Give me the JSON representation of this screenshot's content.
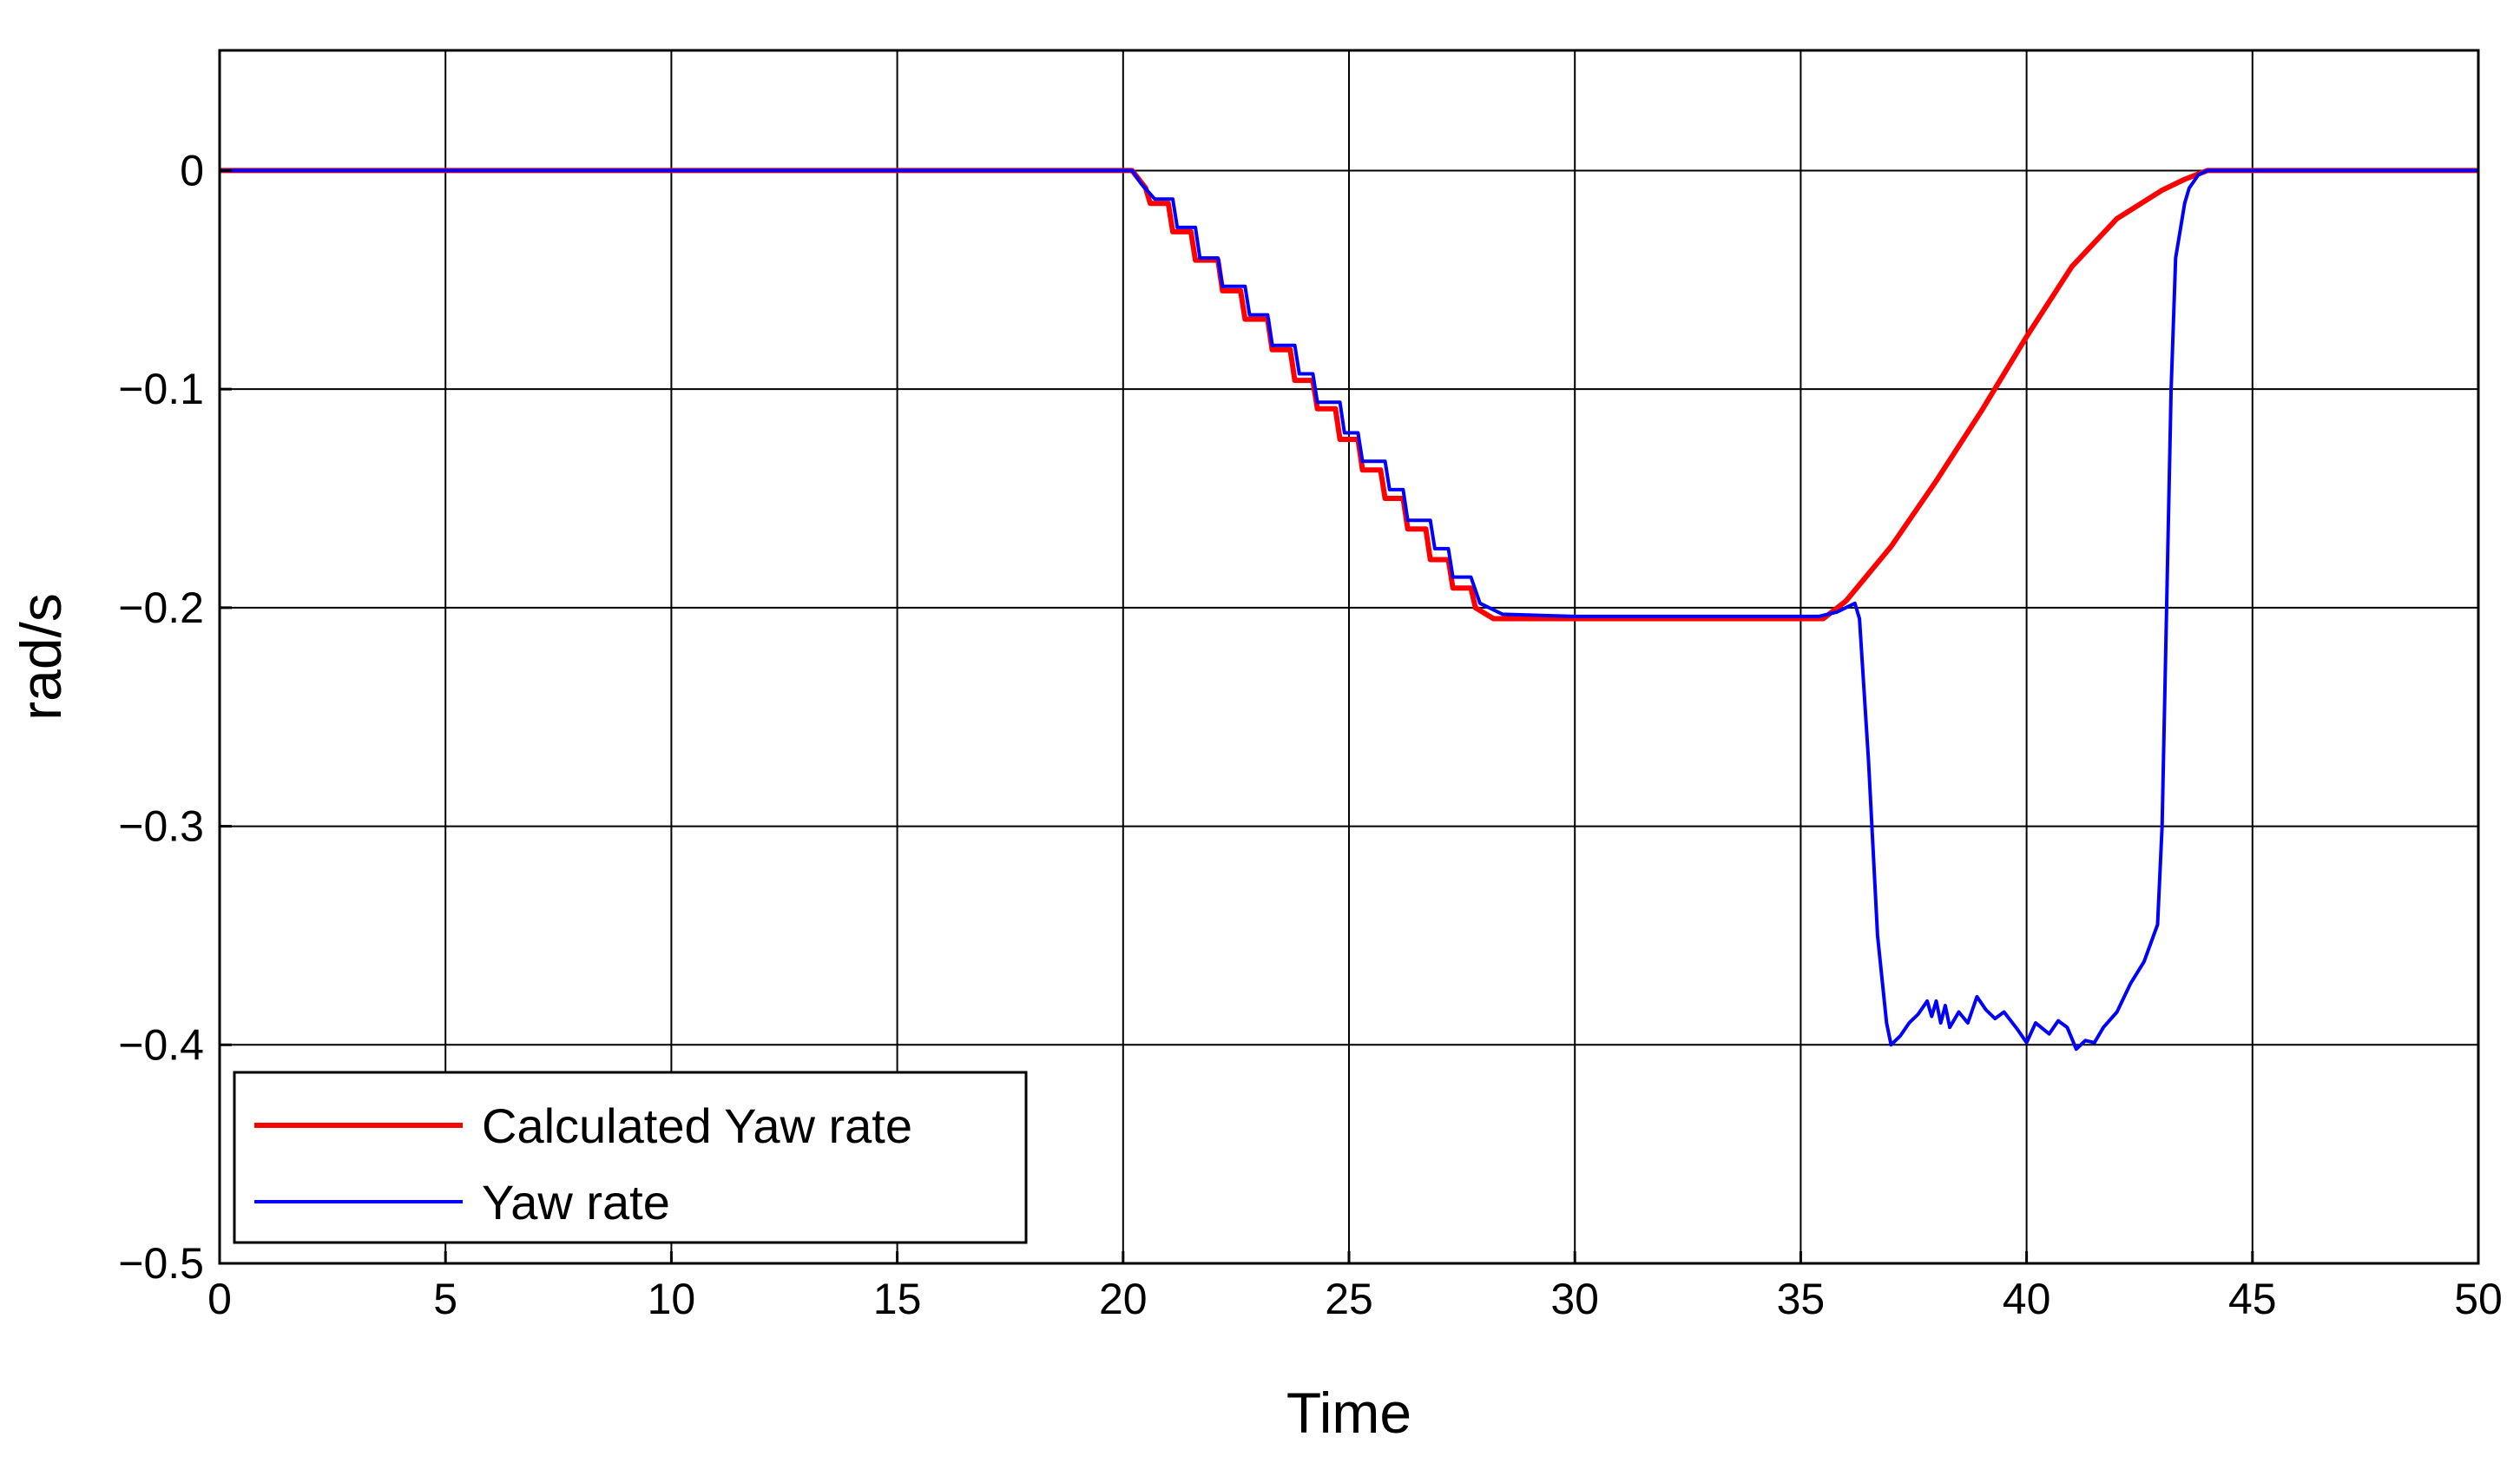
{
  "chart_data": {
    "type": "line",
    "title": "",
    "xlabel": "Time",
    "ylabel": "rad/s",
    "xlim": [
      0,
      50
    ],
    "ylim": [
      -0.5,
      0.055
    ],
    "xticks": [
      0,
      5,
      10,
      15,
      20,
      25,
      30,
      35,
      40,
      45,
      50
    ],
    "xtick_labels": [
      "0",
      "5",
      "10",
      "15",
      "20",
      "25",
      "30",
      "35",
      "40",
      "45",
      "50"
    ],
    "yticks": [
      0,
      -0.1,
      -0.2,
      -0.3,
      -0.4,
      -0.5
    ],
    "ytick_labels": [
      "0",
      "−0.1",
      "−0.2",
      "−0.3",
      "−0.4",
      "−0.5"
    ],
    "grid": true,
    "legend_position": "bottom-left",
    "series": [
      {
        "name": "Calculated Yaw rate",
        "color": "#ff0000",
        "x": [
          0,
          20.2,
          20.5,
          20.6,
          21.0,
          21.1,
          21.5,
          21.6,
          22.1,
          22.2,
          22.6,
          22.7,
          23.2,
          23.3,
          23.7,
          23.8,
          24.2,
          24.3,
          24.7,
          24.8,
          25.2,
          25.3,
          25.7,
          25.8,
          26.2,
          26.3,
          26.7,
          26.8,
          27.2,
          27.3,
          27.7,
          27.8,
          28.2,
          29.0,
          30.0,
          32.0,
          34.0,
          35.5,
          36.0,
          37.0,
          38.0,
          39.0,
          40.0,
          41.0,
          42.0,
          43.0,
          43.5,
          44.0,
          50.0
        ],
        "y": [
          0,
          0,
          -0.008,
          -0.015,
          -0.015,
          -0.028,
          -0.028,
          -0.041,
          -0.041,
          -0.055,
          -0.055,
          -0.068,
          -0.068,
          -0.082,
          -0.082,
          -0.096,
          -0.096,
          -0.109,
          -0.109,
          -0.123,
          -0.123,
          -0.137,
          -0.137,
          -0.15,
          -0.15,
          -0.164,
          -0.164,
          -0.178,
          -0.178,
          -0.191,
          -0.191,
          -0.2,
          -0.205,
          -0.205,
          -0.205,
          -0.205,
          -0.205,
          -0.205,
          -0.197,
          -0.172,
          -0.142,
          -0.11,
          -0.076,
          -0.044,
          -0.022,
          -0.009,
          -0.004,
          0,
          0
        ]
      },
      {
        "name": "Yaw rate",
        "color": "#0000ff",
        "x": [
          0,
          20.2,
          20.4,
          20.7,
          21.1,
          21.2,
          21.6,
          21.7,
          22.1,
          22.2,
          22.7,
          22.8,
          23.2,
          23.3,
          23.8,
          23.9,
          24.2,
          24.3,
          24.8,
          24.9,
          25.2,
          25.3,
          25.8,
          25.9,
          26.2,
          26.3,
          26.8,
          26.9,
          27.2,
          27.3,
          27.7,
          27.9,
          28.4,
          30.0,
          33.0,
          35.4,
          35.8,
          36.2,
          36.3,
          36.5,
          36.7,
          36.9,
          37.0,
          37.2,
          37.4,
          37.6,
          37.8,
          37.9,
          38.0,
          38.1,
          38.2,
          38.3,
          38.5,
          38.7,
          38.9,
          39.1,
          39.3,
          39.5,
          39.8,
          40.0,
          40.2,
          40.5,
          40.7,
          40.9,
          41.1,
          41.3,
          41.5,
          41.7,
          42.0,
          42.3,
          42.6,
          42.9,
          43.0,
          43.1,
          43.2,
          43.3,
          43.5,
          43.6,
          43.8,
          44.0,
          50.0
        ],
        "y": [
          0,
          0,
          -0.006,
          -0.013,
          -0.013,
          -0.026,
          -0.026,
          -0.04,
          -0.04,
          -0.053,
          -0.053,
          -0.066,
          -0.066,
          -0.08,
          -0.08,
          -0.093,
          -0.093,
          -0.106,
          -0.106,
          -0.12,
          -0.12,
          -0.133,
          -0.133,
          -0.146,
          -0.146,
          -0.16,
          -0.16,
          -0.173,
          -0.173,
          -0.186,
          -0.186,
          -0.198,
          -0.203,
          -0.204,
          -0.204,
          -0.204,
          -0.202,
          -0.198,
          -0.205,
          -0.27,
          -0.35,
          -0.39,
          -0.4,
          -0.396,
          -0.39,
          -0.386,
          -0.38,
          -0.387,
          -0.38,
          -0.39,
          -0.382,
          -0.392,
          -0.385,
          -0.39,
          -0.378,
          -0.384,
          -0.388,
          -0.385,
          -0.393,
          -0.399,
          -0.39,
          -0.395,
          -0.389,
          -0.392,
          -0.402,
          -0.398,
          -0.399,
          -0.392,
          -0.385,
          -0.372,
          -0.362,
          -0.345,
          -0.3,
          -0.2,
          -0.1,
          -0.04,
          -0.015,
          -0.008,
          -0.002,
          0,
          0
        ]
      }
    ]
  }
}
